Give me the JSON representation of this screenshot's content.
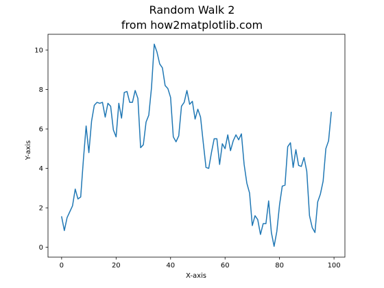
{
  "chart_data": {
    "type": "line",
    "title": "Random Walk 2",
    "subtitle": "from how2matplotlib.com",
    "xlabel": "X-axis",
    "ylabel": "Y-axis",
    "xlim": [
      -5,
      104
    ],
    "ylim": [
      -0.5,
      10.8
    ],
    "xticks": [
      0,
      20,
      40,
      60,
      80,
      100
    ],
    "yticks": [
      0,
      2,
      4,
      6,
      8,
      10
    ],
    "grid": false,
    "legend": "none",
    "series": [
      {
        "color": "#1f77b4",
        "x": [
          0,
          1,
          2,
          3,
          4,
          5,
          6,
          7,
          8,
          9,
          10,
          11,
          12,
          13,
          14,
          15,
          16,
          17,
          18,
          19,
          20,
          21,
          22,
          23,
          24,
          25,
          26,
          27,
          28,
          29,
          30,
          31,
          32,
          33,
          34,
          35,
          36,
          37,
          38,
          39,
          40,
          41,
          42,
          43,
          44,
          45,
          46,
          47,
          48,
          49,
          50,
          51,
          52,
          53,
          54,
          55,
          56,
          57,
          58,
          59,
          60,
          61,
          62,
          63,
          64,
          65,
          66,
          67,
          68,
          69,
          70,
          71,
          72,
          73,
          74,
          75,
          76,
          77,
          78,
          79,
          80,
          81,
          82,
          83,
          84,
          85,
          86,
          87,
          88,
          89,
          90,
          91,
          92,
          93,
          94,
          95,
          96,
          97,
          98,
          99
        ],
        "y": [
          1.55,
          0.85,
          1.5,
          1.8,
          2.1,
          2.95,
          2.45,
          2.55,
          4.45,
          6.15,
          4.8,
          6.4,
          7.2,
          7.35,
          7.3,
          7.35,
          6.6,
          7.3,
          7.15,
          5.95,
          5.6,
          7.3,
          6.55,
          7.85,
          7.9,
          7.35,
          7.35,
          7.95,
          7.55,
          5.05,
          5.2,
          6.35,
          6.7,
          8.1,
          10.3,
          9.9,
          9.3,
          9.1,
          8.2,
          8.05,
          7.6,
          5.6,
          5.35,
          5.65,
          7.15,
          7.35,
          7.95,
          7.25,
          7.4,
          6.5,
          7.0,
          6.6,
          5.3,
          4.05,
          4.0,
          4.8,
          5.5,
          5.5,
          4.2,
          5.25,
          5.0,
          5.7,
          4.9,
          5.4,
          5.7,
          5.45,
          5.75,
          4.2,
          3.25,
          2.75,
          1.1,
          1.6,
          1.4,
          0.65,
          1.2,
          1.2,
          2.35,
          0.75,
          0.05,
          0.8,
          2.15,
          3.1,
          3.15,
          5.1,
          5.3,
          4.05,
          4.95,
          4.15,
          4.1,
          4.55,
          3.85,
          1.6,
          1.0,
          0.75,
          2.3,
          2.7,
          3.35,
          5.0,
          5.4,
          6.85
        ]
      }
    ]
  }
}
